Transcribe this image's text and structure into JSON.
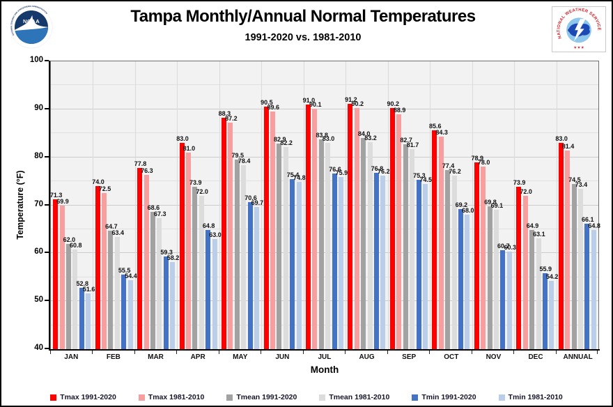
{
  "header": {
    "title": "Tampa Monthly/Annual Normal Temperatures",
    "subtitle": "1991-2020 vs. 1981-2010",
    "noaa_logo": {
      "name": "NOAA",
      "ring_text": "NATIONAL OCEANIC AND ATMOSPHERIC ADMINISTRATION",
      "bottom_text": "U.S. DEPARTMENT OF COMMERCE"
    },
    "nws_logo": {
      "ring_text": "NATIONAL WEATHER SERVICE",
      "stars": "★ ★ ★"
    }
  },
  "chart_data": {
    "type": "bar",
    "title": "Tampa Monthly/Annual Normal Temperatures",
    "subtitle": "1991-2020 vs. 1981-2010",
    "xlabel": "Month",
    "ylabel": "Temperature (°F)",
    "ylim": [
      40,
      100
    ],
    "y_ticks": [
      40,
      50,
      60,
      70,
      80,
      90,
      100
    ],
    "gridline_minor_step": 5,
    "grid": true,
    "legend_position": "bottom",
    "value_labels": true,
    "plot_bg": "#F2F2F2",
    "categories": [
      "JAN",
      "FEB",
      "MAR",
      "APR",
      "MAY",
      "JUN",
      "JUL",
      "AUG",
      "SEP",
      "OCT",
      "NOV",
      "DEC",
      "ANNUAL"
    ],
    "series": [
      {
        "name": "Tmax 1991-2020",
        "color": "#FF0000",
        "values": [
          71.3,
          74.0,
          77.8,
          83.0,
          88.3,
          90.5,
          91.0,
          91.2,
          90.2,
          85.6,
          78.9,
          73.9,
          83.0
        ]
      },
      {
        "name": "Tmax 1981-2010",
        "color": "#F99E9E",
        "values": [
          69.9,
          72.5,
          76.3,
          81.0,
          87.2,
          89.6,
          90.1,
          90.2,
          88.9,
          84.3,
          78.0,
          72.0,
          81.4
        ]
      },
      {
        "name": "Tmean 1991-2020",
        "color": "#A2A2A2",
        "values": [
          62.0,
          64.7,
          68.6,
          73.9,
          79.5,
          82.9,
          83.8,
          84.0,
          82.7,
          77.4,
          69.8,
          64.9,
          74.5
        ]
      },
      {
        "name": "Tmean 1981-2010",
        "color": "#DCDCDC",
        "values": [
          60.8,
          63.4,
          67.3,
          72.0,
          78.4,
          82.2,
          83.0,
          83.2,
          81.7,
          76.2,
          69.1,
          63.1,
          73.4
        ]
      },
      {
        "name": "Tmin 1991-2020",
        "color": "#4472C4",
        "values": [
          52.8,
          55.5,
          59.3,
          64.8,
          70.6,
          75.4,
          76.6,
          76.8,
          75.3,
          69.2,
          60.7,
          55.9,
          66.1
        ]
      },
      {
        "name": "Tmin 1981-2010",
        "color": "#BACEEA",
        "values": [
          51.6,
          54.4,
          58.2,
          63.0,
          69.7,
          74.8,
          75.9,
          76.2,
          74.5,
          68.0,
          60.3,
          54.2,
          64.8
        ]
      }
    ]
  }
}
